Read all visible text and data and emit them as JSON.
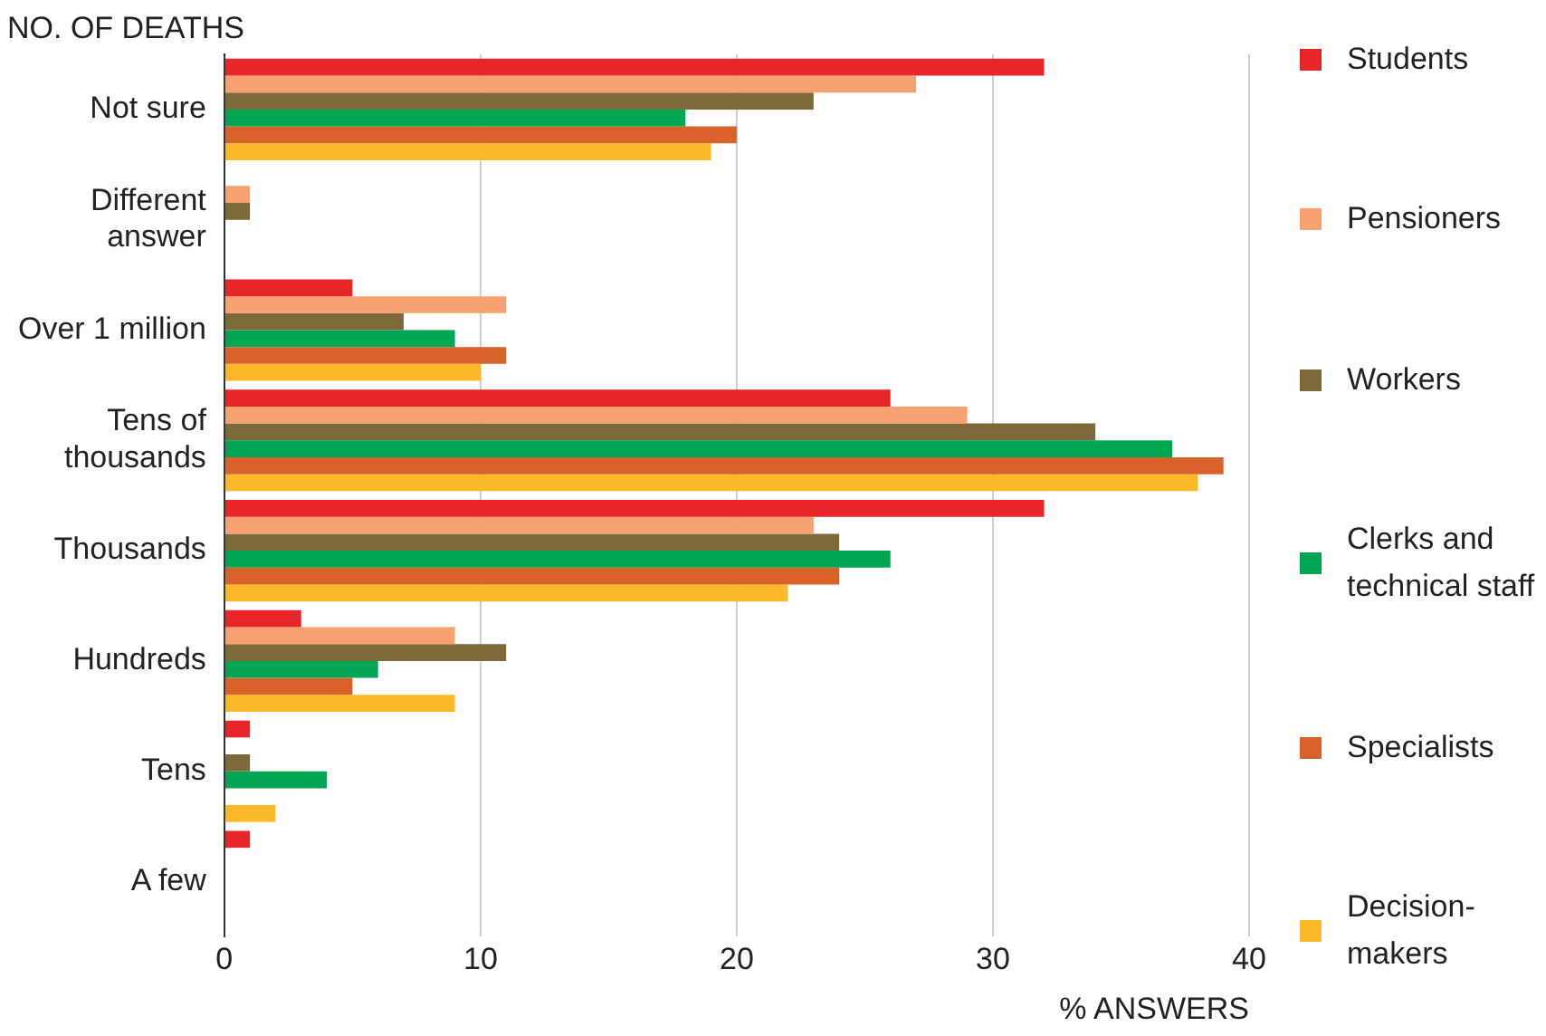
{
  "chart_data": {
    "type": "bar",
    "orientation": "horizontal",
    "ylabel": "NO. OF DEATHS",
    "xlabel": "% ANSWERS",
    "categories": [
      "Not sure",
      "Different answer",
      "Over 1 million",
      "Tens of thousands",
      "Thousands",
      "Hundreds",
      "Tens",
      "A few"
    ],
    "series": [
      {
        "name": "Students",
        "color": "#e8262a",
        "values": [
          32,
          0,
          5,
          26,
          32,
          3,
          1,
          1
        ]
      },
      {
        "name": "Pensioners",
        "color": "#f7a070",
        "values": [
          27,
          1,
          11,
          29,
          23,
          9,
          0,
          0
        ]
      },
      {
        "name": "Workers",
        "color": "#7d6a3a",
        "values": [
          23,
          1,
          7,
          34,
          24,
          11,
          1,
          0
        ]
      },
      {
        "name": "Clerks and technical staff",
        "color": "#00a651",
        "values": [
          18,
          0,
          9,
          37,
          26,
          6,
          4,
          0
        ]
      },
      {
        "name": "Specialists",
        "color": "#d9622b",
        "values": [
          20,
          0,
          11,
          39,
          24,
          5,
          0,
          0
        ]
      },
      {
        "name": "Decision-makers",
        "color": "#fbb829",
        "values": [
          19,
          0,
          10,
          38,
          22,
          9,
          2,
          0
        ]
      }
    ],
    "xlim": [
      0,
      40
    ],
    "xticks": [
      0,
      10,
      20,
      30,
      40
    ],
    "grid": "x",
    "legend": "right"
  }
}
